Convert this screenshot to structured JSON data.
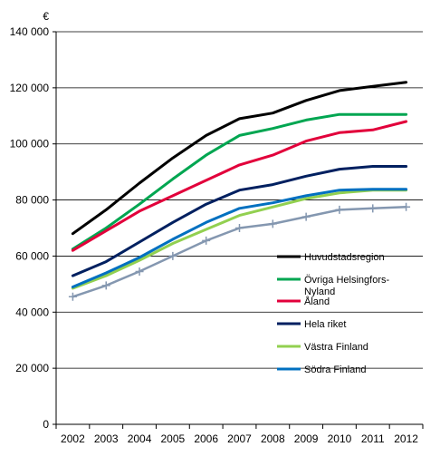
{
  "chart_data": {
    "type": "line",
    "unit": "€",
    "x": [
      "2002",
      "2003",
      "2004",
      "2005",
      "2006",
      "2007",
      "2008",
      "2009",
      "2010",
      "2011",
      "2012"
    ],
    "ylim": [
      0,
      140000
    ],
    "yticks": [
      0,
      20000,
      40000,
      60000,
      80000,
      100000,
      120000,
      140000
    ],
    "ytick_labels": [
      "0",
      "20 000",
      "40 000",
      "60 000",
      "80 000",
      "100 000",
      "120 000",
      "140 000"
    ],
    "grid": "horizontal",
    "legend_position": "bottom-right",
    "series": [
      {
        "name": "Huvudstadsregion",
        "color": "#000000",
        "marker": "none",
        "values": [
          68000,
          76500,
          86000,
          95000,
          103000,
          109000,
          111000,
          115500,
          119000,
          120500,
          122000
        ]
      },
      {
        "name": "Övriga Helsingfors-Nyland",
        "color": "#00a651",
        "marker": "none",
        "values": [
          62500,
          70000,
          78500,
          87500,
          96000,
          103000,
          105500,
          108500,
          110500,
          110500,
          110500
        ]
      },
      {
        "name": "Åland",
        "color": "#e2003b",
        "marker": "none",
        "values": [
          62000,
          69000,
          76000,
          81500,
          87000,
          92500,
          96000,
          101000,
          104000,
          105000,
          108000
        ]
      },
      {
        "name": "Hela riket",
        "color": "#002060",
        "marker": "none",
        "values": [
          53000,
          58000,
          65000,
          72000,
          78500,
          83500,
          85500,
          88500,
          91000,
          92000,
          92000
        ]
      },
      {
        "name": "Västra Finland",
        "color": "#92d050",
        "marker": "none",
        "values": [
          48500,
          53000,
          58500,
          64500,
          69500,
          74500,
          77500,
          80500,
          82500,
          83500,
          83500
        ]
      },
      {
        "name": "Södra Finland",
        "color": "#0070c0",
        "marker": "none",
        "values": [
          49000,
          54000,
          59500,
          66000,
          72000,
          77000,
          79000,
          81500,
          83500,
          83800,
          83800
        ]
      },
      {
        "name": "",
        "color": "#8497b0",
        "marker": "plus",
        "values": [
          45500,
          49500,
          54500,
          60000,
          65500,
          70000,
          71500,
          74000,
          76500,
          77000,
          77500
        ]
      }
    ]
  }
}
